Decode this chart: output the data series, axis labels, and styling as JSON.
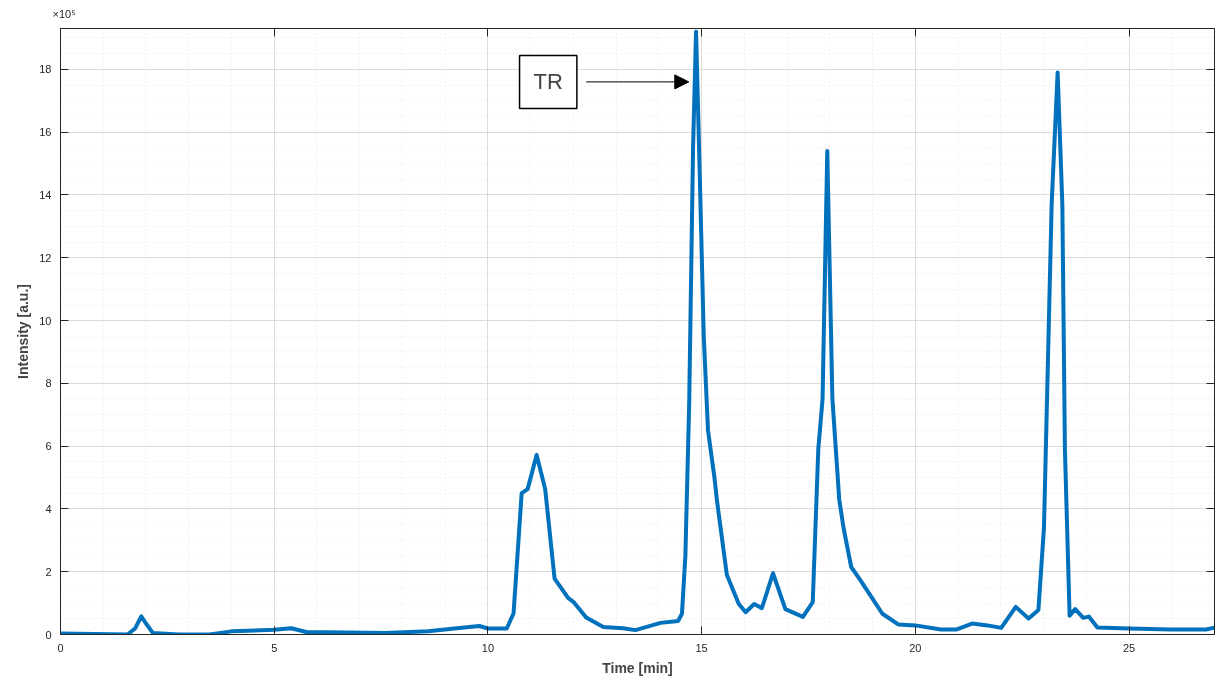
{
  "chart_data": {
    "type": "line",
    "xlabel": "Time [min]",
    "ylabel": "Intensity [a.u.]",
    "xlim": [
      0,
      27
    ],
    "ylim": [
      0,
      19.3
    ],
    "xticks": [
      0,
      5,
      10,
      15,
      20,
      25
    ],
    "yticks": [
      0,
      2,
      4,
      6,
      8,
      10,
      12,
      14,
      16,
      18
    ],
    "grid": true,
    "marker": "none",
    "line_style": "solid",
    "annotations": [
      "×10⁵",
      {
        "text": "TR",
        "x": 14.7,
        "y": 17.6
      }
    ],
    "series": [
      {
        "color": "#0072bd",
        "x": [
          0,
          1.57,
          1.75,
          1.89,
          2.0,
          2.16,
          2.76,
          3.49,
          4.0,
          5.0,
          5.4,
          5.77,
          6.23,
          7.6,
          8.6,
          9.33,
          9.8,
          10.0,
          10.44,
          10.6,
          10.79,
          10.93,
          11.14,
          11.34,
          11.56,
          11.88,
          12.0,
          12.3,
          12.7,
          13.16,
          13.45,
          14.04,
          14.45,
          14.54,
          14.62,
          14.71,
          14.8,
          14.87,
          14.95,
          15.05,
          15.15,
          15.3,
          15.36,
          15.59,
          15.87,
          16.03,
          16.23,
          16.41,
          16.67,
          16.96,
          17.37,
          17.6,
          17.73,
          17.83,
          17.94,
          18.06,
          18.22,
          18.32,
          18.5,
          18.69,
          18.96,
          19.23,
          19.6,
          20.0,
          20.6,
          20.97,
          21.33,
          21.69,
          22.01,
          22.35,
          22.65,
          22.88,
          23.01,
          23.19,
          23.33,
          23.44,
          23.5,
          23.61,
          23.74,
          23.93,
          24.06,
          24.26,
          25.0,
          25.98,
          26.8,
          27.0
        ],
        "values": [
          0.03,
          0.0,
          0.2,
          0.58,
          0.35,
          0.05,
          0.0,
          0.0,
          0.1,
          0.15,
          0.2,
          0.07,
          0.07,
          0.05,
          0.1,
          0.21,
          0.27,
          0.19,
          0.19,
          0.67,
          4.5,
          4.63,
          5.72,
          4.63,
          1.78,
          1.16,
          1.04,
          0.54,
          0.24,
          0.2,
          0.14,
          0.37,
          0.43,
          0.66,
          2.5,
          7.4,
          15.5,
          19.2,
          15.0,
          9.5,
          6.5,
          5.0,
          4.26,
          1.9,
          0.97,
          0.71,
          0.97,
          0.84,
          1.95,
          0.81,
          0.56,
          1.03,
          5.9,
          7.5,
          15.4,
          7.5,
          4.3,
          3.4,
          2.15,
          1.78,
          1.22,
          0.66,
          0.32,
          0.29,
          0.16,
          0.16,
          0.35,
          0.29,
          0.21,
          0.88,
          0.51,
          0.78,
          3.4,
          13.7,
          17.9,
          13.7,
          5.9,
          0.6,
          0.81,
          0.53,
          0.57,
          0.22,
          0.19,
          0.16,
          0.16,
          0.22
        ]
      }
    ]
  }
}
